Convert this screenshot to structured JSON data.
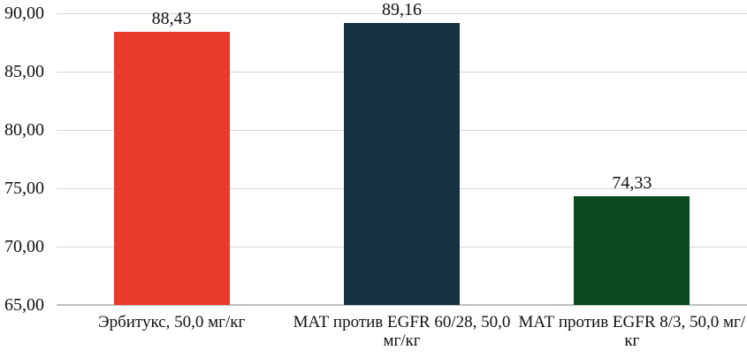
{
  "chart_data": {
    "type": "bar",
    "title": "",
    "xlabel": "",
    "ylabel": "",
    "categories": [
      "Эрбитукс, 50,0 мг/кг",
      "МАТ против EGFR 60/28, 50,0 мг/кг",
      "МАТ против EGFR 8/3, 50,0 мг/кг"
    ],
    "values": [
      88.43,
      89.16,
      74.33
    ],
    "value_labels": [
      "88,43",
      "89,16",
      "74,33"
    ],
    "bar_colors": [
      "#e83b2b",
      "#16313f",
      "#0b4921"
    ],
    "ylim": [
      65,
      90
    ],
    "ytick_step": 5,
    "ytick_labels": [
      "65,00",
      "70,00",
      "75,00",
      "80,00",
      "85,00",
      "90,00"
    ],
    "grid": true,
    "legend": false,
    "decimal_separator": ",",
    "gridline_color": "#d6d6d6",
    "axis_line_color": "#bfbfbf",
    "text_color": "#111111",
    "background_color": "#ffffff"
  }
}
